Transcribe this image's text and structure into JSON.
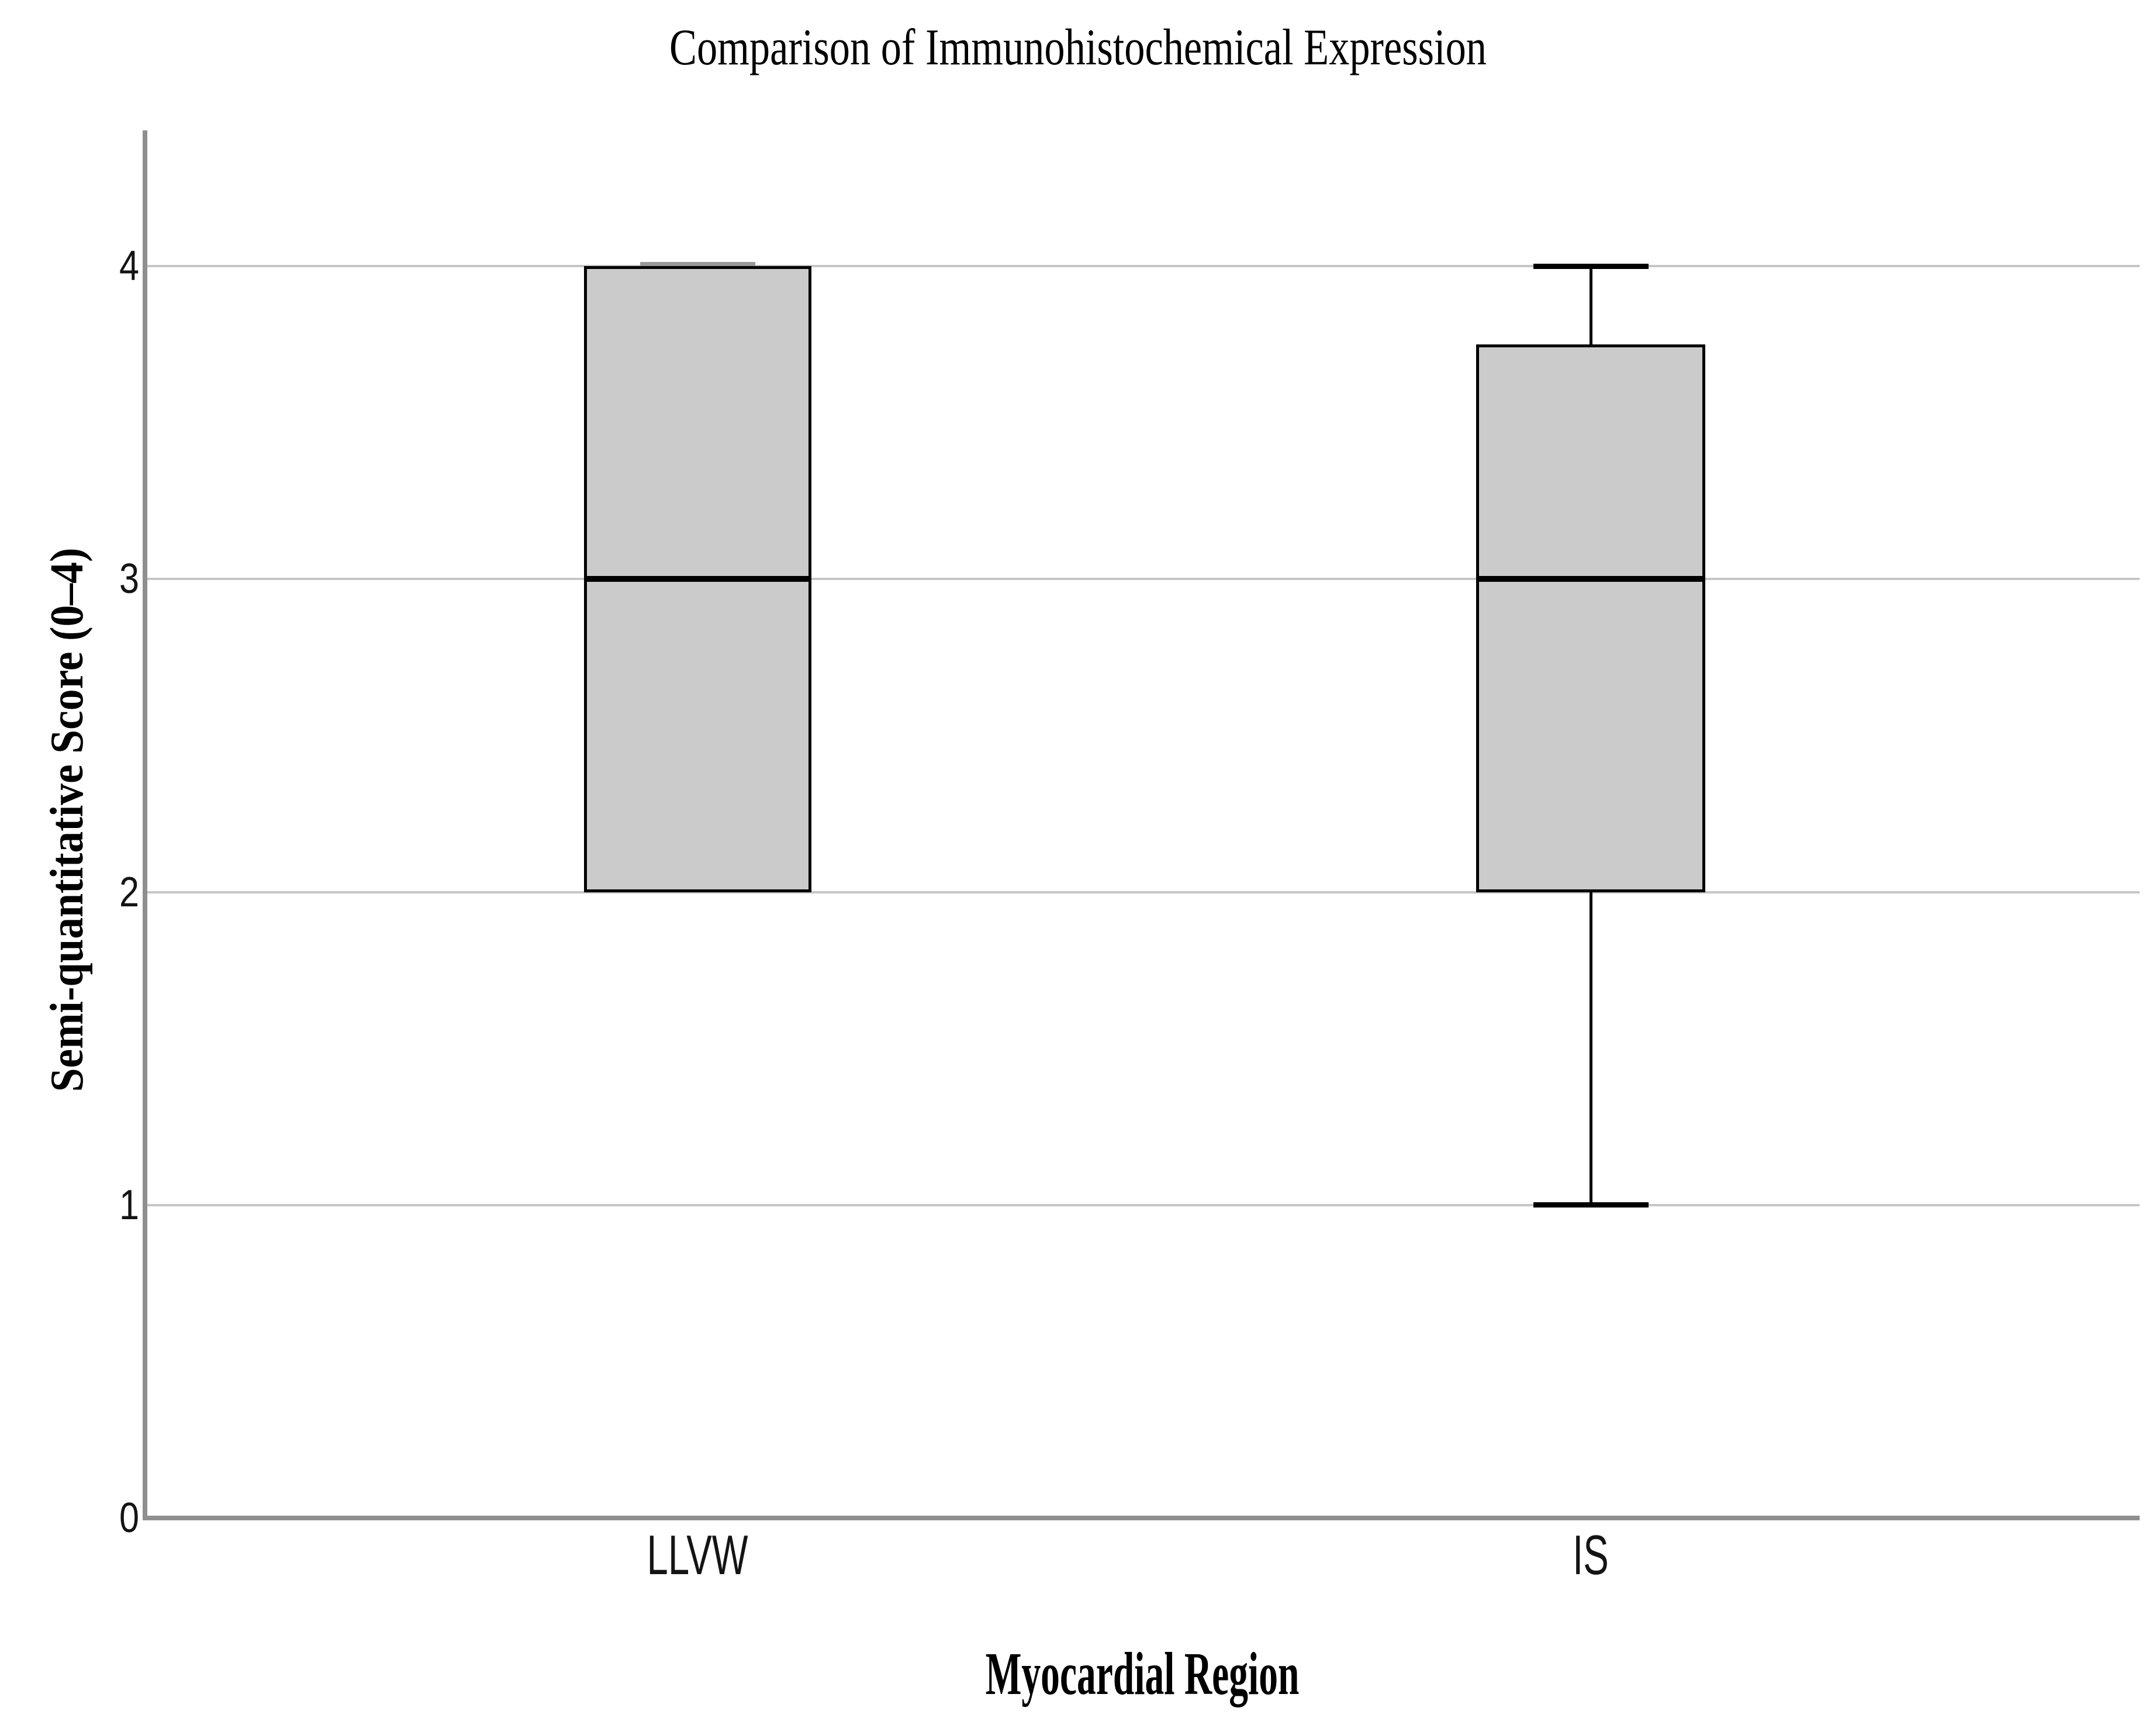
{
  "title": "Comparison of Immunohistochemical Expression",
  "chart_data": {
    "type": "boxplot",
    "title": "Comparison of Immunohistochemical Expression",
    "xlabel": "Myocardial Region",
    "ylabel": "Semi-quantitative Score (0–4)",
    "categories": [
      "LLVW",
      "IS"
    ],
    "series": [
      {
        "name": "LLVW",
        "whisker_low": 2,
        "q1": 2,
        "median": 3,
        "q3": 4,
        "whisker_high": 4
      },
      {
        "name": "IS",
        "whisker_low": 1,
        "q1": 2,
        "median": 3,
        "q3": 3.75,
        "whisker_high": 4
      }
    ],
    "yticks": [
      0,
      1,
      2,
      3,
      4
    ],
    "ylim": [
      0,
      4.45
    ],
    "grid": "horizontal",
    "legend": "none"
  },
  "colors": {
    "background": "#ffffff",
    "box_fill": "#cbcbcb",
    "box_border": "#000000",
    "median_line": "#000000",
    "whisker": "#000000",
    "flush_whisker_cap": "#999999",
    "gridline": "#c6c6c6",
    "axis_line": "#8f8f8f",
    "text": "#000000"
  }
}
